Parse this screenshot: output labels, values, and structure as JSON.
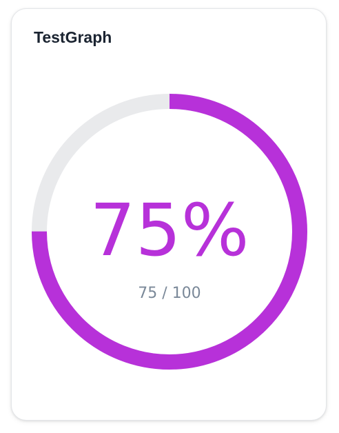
{
  "card": {
    "title": "TestGraph"
  },
  "chart_data": {
    "type": "gauge",
    "value": 75,
    "max": 100,
    "percent_label": "75%",
    "ratio_label": "75 / 100",
    "colors": {
      "progress": "#b731d9",
      "track": "#e9eaec",
      "percent_text": "#b731d9",
      "ratio_text": "#7a8898"
    }
  }
}
